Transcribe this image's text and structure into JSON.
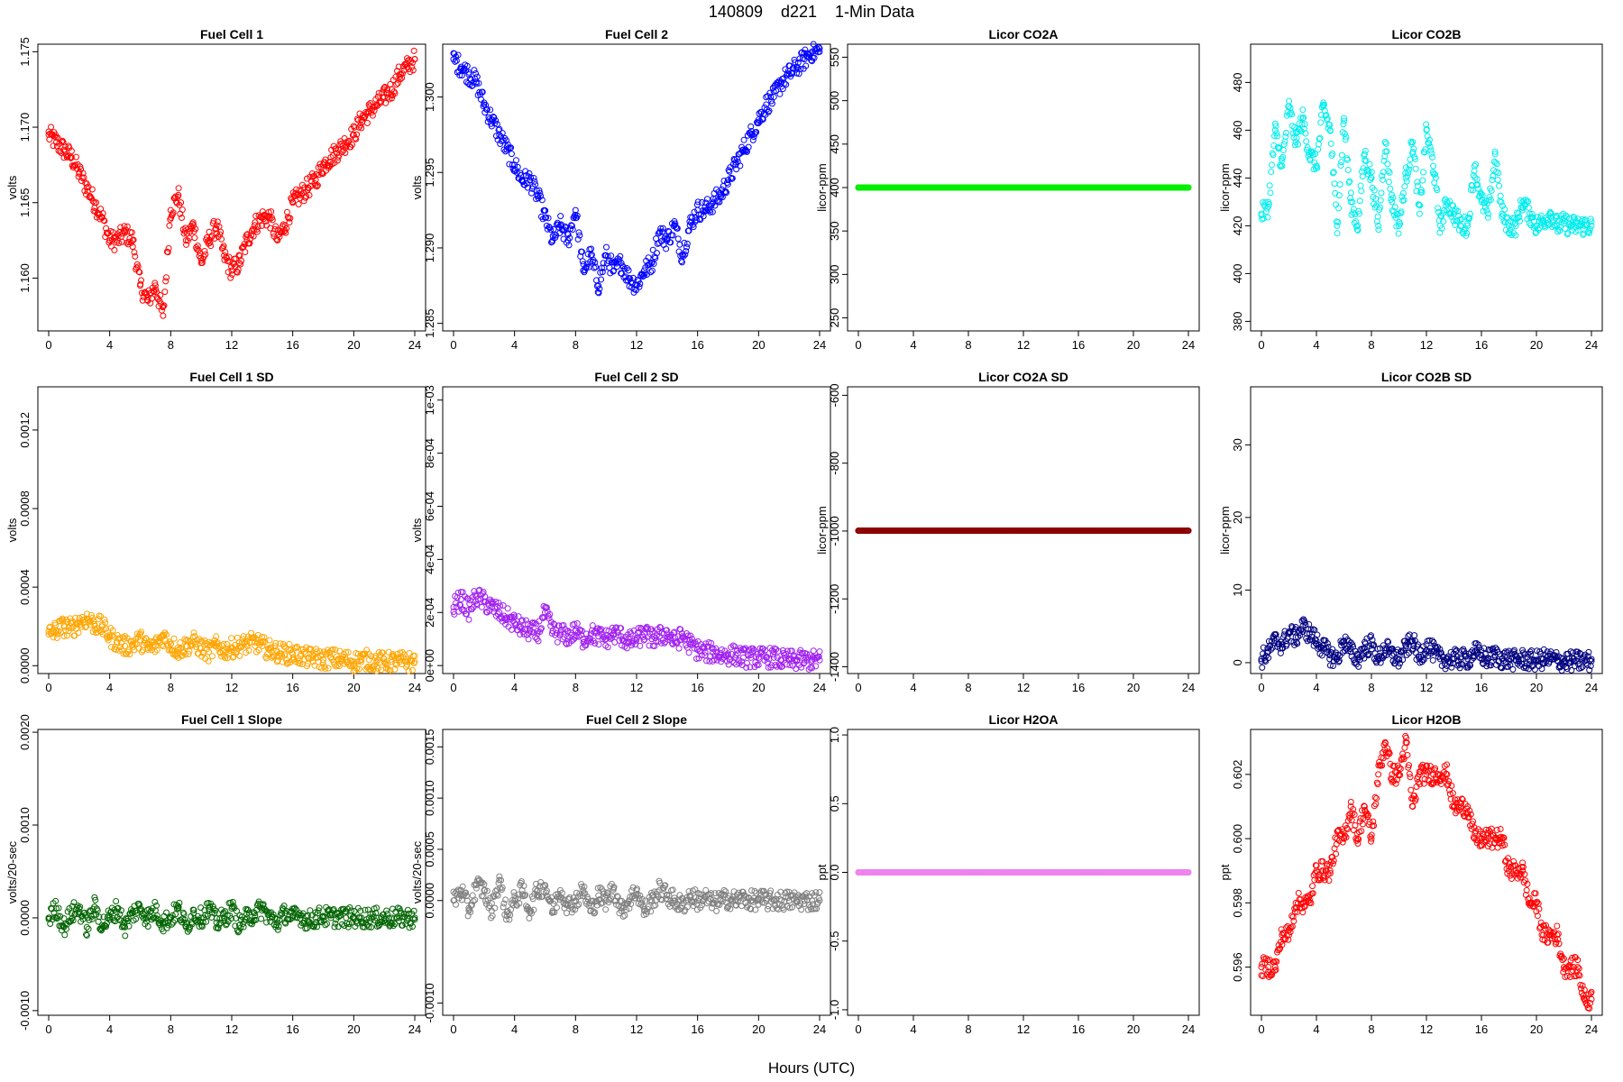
{
  "figure": {
    "title": "140809    d221    1-Min Data",
    "xlabel": "Hours (UTC)"
  },
  "chart_data": [
    {
      "type": "scatter",
      "title": "Fuel Cell 1",
      "ylabel": "volts",
      "color": "#ff0000",
      "xlim": [
        0,
        24
      ],
      "ylim": [
        1.1565,
        1.1755
      ],
      "xticks": [
        0,
        4,
        8,
        12,
        16,
        20,
        24
      ],
      "yticks": [
        1.16,
        1.165,
        1.17,
        1.175
      ],
      "ytick_labels": [
        "1.160",
        "1.165",
        "1.170",
        "1.175"
      ],
      "x": [
        0,
        0.5,
        1,
        1.5,
        2,
        2.5,
        3,
        3.5,
        4,
        4.5,
        5,
        5.5,
        6,
        6.5,
        7,
        7.5,
        8,
        8.5,
        9,
        9.5,
        10,
        10.5,
        11,
        11.5,
        12,
        12.5,
        13,
        13.5,
        14,
        14.5,
        15,
        15.5,
        16,
        16.5,
        17,
        17.5,
        18,
        18.5,
        19,
        19.5,
        20,
        20.5,
        21,
        21.5,
        22,
        22.5,
        23,
        23.5,
        24
      ],
      "y": [
        1.1695,
        1.169,
        1.1685,
        1.168,
        1.167,
        1.166,
        1.165,
        1.164,
        1.1625,
        1.1625,
        1.163,
        1.1625,
        1.1595,
        1.1585,
        1.1595,
        1.1575,
        1.1645,
        1.1655,
        1.1625,
        1.1635,
        1.161,
        1.1625,
        1.1635,
        1.1615,
        1.1605,
        1.161,
        1.1625,
        1.1635,
        1.164,
        1.164,
        1.1625,
        1.1635,
        1.165,
        1.1655,
        1.166,
        1.1665,
        1.1675,
        1.168,
        1.1685,
        1.169,
        1.1695,
        1.1705,
        1.171,
        1.1715,
        1.172,
        1.1725,
        1.1735,
        1.174,
        1.1745
      ]
    },
    {
      "type": "scatter",
      "title": "Fuel Cell 2",
      "ylabel": "volts",
      "color": "#0000ff",
      "xlim": [
        0,
        24
      ],
      "ylim": [
        1.2845,
        1.3035
      ],
      "xticks": [
        0,
        4,
        8,
        12,
        16,
        20,
        24
      ],
      "yticks": [
        1.285,
        1.29,
        1.295,
        1.3
      ],
      "ytick_labels": [
        "1.285",
        "1.290",
        "1.295",
        "1.300"
      ],
      "x": [
        0,
        0.5,
        1,
        1.5,
        2,
        2.5,
        3,
        3.5,
        4,
        4.5,
        5,
        5.5,
        6,
        6.5,
        7,
        7.5,
        8,
        8.5,
        9,
        9.5,
        10,
        10.5,
        11,
        11.5,
        12,
        12.5,
        13,
        13.5,
        14,
        14.5,
        15,
        15.5,
        16,
        16.5,
        17,
        17.5,
        18,
        18.5,
        19,
        19.5,
        20,
        20.5,
        21,
        21.5,
        22,
        22.5,
        23,
        23.5,
        24
      ],
      "y": [
        1.3025,
        1.302,
        1.3015,
        1.301,
        1.2995,
        1.2985,
        1.2975,
        1.2965,
        1.2955,
        1.2945,
        1.2945,
        1.2935,
        1.292,
        1.2905,
        1.2915,
        1.2905,
        1.2925,
        1.2885,
        1.2895,
        1.2875,
        1.2895,
        1.2885,
        1.289,
        1.288,
        1.2875,
        1.2885,
        1.289,
        1.291,
        1.2905,
        1.2915,
        1.2895,
        1.2915,
        1.2925,
        1.2925,
        1.293,
        1.2935,
        1.2945,
        1.2955,
        1.2965,
        1.2975,
        1.2985,
        1.2995,
        1.3,
        1.301,
        1.3015,
        1.302,
        1.3025,
        1.303,
        1.303
      ]
    },
    {
      "type": "scatter",
      "title": "Licor CO2A",
      "ylabel": "licor-ppm",
      "color": "#00ee00",
      "xlim": [
        0,
        24
      ],
      "ylim": [
        235,
        565
      ],
      "xticks": [
        0,
        4,
        8,
        12,
        16,
        20,
        24
      ],
      "yticks": [
        250,
        300,
        350,
        400,
        450,
        500,
        550
      ],
      "ytick_labels": [
        "250",
        "300",
        "350",
        "400",
        "450",
        "500",
        "550"
      ],
      "x": [
        0,
        24
      ],
      "y": [
        400,
        400
      ]
    },
    {
      "type": "scatter",
      "title": "Licor CO2B",
      "ylabel": "licor-ppm",
      "color": "#00eeee",
      "xlim": [
        0,
        24
      ],
      "ylim": [
        376,
        496
      ],
      "xticks": [
        0,
        4,
        8,
        12,
        16,
        20,
        24
      ],
      "yticks": [
        380,
        400,
        420,
        440,
        460,
        480
      ],
      "ytick_labels": [
        "380",
        "400",
        "420",
        "440",
        "460",
        "480"
      ],
      "x": [
        0,
        0.5,
        1,
        1.5,
        2,
        2.5,
        3,
        3.5,
        4,
        4.5,
        5,
        5.5,
        6,
        6.5,
        7,
        7.5,
        8,
        8.5,
        9,
        9.5,
        10,
        10.5,
        11,
        11.5,
        12,
        12.5,
        13,
        13.5,
        14,
        14.5,
        15,
        15.5,
        16,
        16.5,
        17,
        17.5,
        18,
        18.5,
        19,
        19.5,
        20,
        20.5,
        21,
        21.5,
        22,
        22.5,
        23,
        23.5,
        24
      ],
      "y": [
        425,
        428,
        460,
        445,
        470,
        455,
        465,
        450,
        445,
        470,
        460,
        420,
        465,
        430,
        420,
        450,
        440,
        420,
        455,
        430,
        420,
        440,
        455,
        425,
        460,
        445,
        420,
        430,
        425,
        420,
        420,
        445,
        430,
        425,
        450,
        425,
        420,
        420,
        430,
        425,
        420,
        422,
        425,
        420,
        421,
        420,
        420,
        420,
        420
      ]
    },
    {
      "type": "scatter",
      "title": "Fuel Cell 1 SD",
      "ylabel": "volts",
      "color": "#ffa500",
      "xlim": [
        0,
        24
      ],
      "ylim": [
        -4e-05,
        0.00142
      ],
      "xticks": [
        0,
        4,
        8,
        12,
        16,
        20,
        24
      ],
      "yticks": [
        0,
        0.0004,
        0.0008,
        0.0012
      ],
      "ytick_labels": [
        "0.0000",
        "0.0004",
        "0.0008",
        "0.0012"
      ],
      "x": [
        0,
        0.5,
        1,
        1.5,
        2,
        2.5,
        3,
        3.5,
        4,
        4.5,
        5,
        5.5,
        6,
        6.5,
        7,
        7.5,
        8,
        8.5,
        9,
        9.5,
        10,
        10.5,
        11,
        11.5,
        12,
        12.5,
        13,
        13.5,
        14,
        14.5,
        15,
        15.5,
        16,
        16.5,
        17,
        17.5,
        18,
        18.5,
        19,
        19.5,
        20,
        20.5,
        21,
        21.5,
        22,
        22.5,
        23,
        23.5,
        24
      ],
      "y": [
        0.00016,
        0.00018,
        0.0002,
        0.00019,
        0.00022,
        0.00024,
        0.00021,
        0.0002,
        0.00015,
        0.00012,
        0.0001,
        0.00011,
        0.00013,
        9e-05,
        0.0001,
        0.00015,
        0.00011,
        8e-05,
        0.0001,
        0.00012,
        9e-05,
        7e-05,
        0.0001,
        8e-05,
        9e-05,
        0.0001,
        0.00011,
        0.00012,
        0.0001,
        8e-05,
        7e-05,
        6e-05,
        6e-05,
        5e-05,
        4e-05,
        4e-05,
        3e-05,
        4e-05,
        3e-05,
        3e-05,
        2e-05,
        3e-05,
        3e-05,
        2e-05,
        2e-05,
        2e-05,
        2e-05,
        2e-05,
        2e-05
      ]
    },
    {
      "type": "scatter",
      "title": "Fuel Cell 2 SD",
      "ylabel": "volts",
      "color": "#a020f0",
      "xlim": [
        0,
        24
      ],
      "ylim": [
        -3e-05,
        0.00105
      ],
      "xticks": [
        0,
        4,
        8,
        12,
        16,
        20,
        24
      ],
      "yticks": [
        0,
        0.0002,
        0.0004,
        0.0006,
        0.0008,
        0.001
      ],
      "ytick_labels": [
        "0e+00",
        "2e-04",
        "4e-04",
        "6e-04",
        "8e-04",
        "1e-03"
      ],
      "x": [
        0,
        0.5,
        1,
        1.5,
        2,
        2.5,
        3,
        3.5,
        4,
        4.5,
        5,
        5.5,
        6,
        6.5,
        7,
        7.5,
        8,
        8.5,
        9,
        9.5,
        10,
        10.5,
        11,
        11.5,
        12,
        12.5,
        13,
        13.5,
        14,
        14.5,
        15,
        15.5,
        16,
        16.5,
        17,
        17.5,
        18,
        18.5,
        19,
        19.5,
        20,
        20.5,
        21,
        21.5,
        22,
        22.5,
        23,
        23.5,
        24
      ],
      "y": [
        0.00022,
        0.00025,
        0.00021,
        0.00026,
        0.00024,
        0.00022,
        0.0002,
        0.00018,
        0.00016,
        0.00014,
        0.00013,
        0.00012,
        0.0002,
        0.00013,
        0.00012,
        0.00011,
        0.00013,
        0.0001,
        0.00012,
        0.00011,
        0.0001,
        0.00012,
        0.00011,
        9e-05,
        0.0001,
        0.00012,
        0.0001,
        0.00011,
        0.00012,
        9e-05,
        0.00011,
        8e-05,
        6e-05,
        5e-05,
        5e-05,
        4e-05,
        4e-05,
        4e-05,
        3e-05,
        3e-05,
        3e-05,
        3e-05,
        3e-05,
        2e-05,
        2e-05,
        2e-05,
        2e-05,
        2e-05,
        2e-05
      ]
    },
    {
      "type": "scatter",
      "title": "Licor CO2A SD",
      "ylabel": "licor-ppm",
      "color": "#8b0000",
      "xlim": [
        0,
        24
      ],
      "ylim": [
        -1420,
        -575
      ],
      "xticks": [
        0,
        4,
        8,
        12,
        16,
        20,
        24
      ],
      "yticks": [
        -1400,
        -1200,
        -1000,
        -800,
        -600
      ],
      "ytick_labels": [
        "-1400",
        "-1200",
        "-1000",
        "-800",
        "-600"
      ],
      "x": [
        0,
        24
      ],
      "y": [
        -999,
        -999
      ]
    },
    {
      "type": "scatter",
      "title": "Licor CO2B SD",
      "ylabel": "licor-ppm",
      "color": "#000080",
      "xlim": [
        0,
        24
      ],
      "ylim": [
        -1.5,
        38
      ],
      "xticks": [
        0,
        4,
        8,
        12,
        16,
        20,
        24
      ],
      "yticks": [
        0,
        10,
        20,
        30
      ],
      "ytick_labels": [
        "0",
        "10",
        "20",
        "30"
      ],
      "x": [
        0,
        0.5,
        1,
        1.5,
        2,
        2.5,
        3,
        3.5,
        4,
        4.5,
        5,
        5.5,
        6,
        6.5,
        7,
        7.5,
        8,
        8.5,
        9,
        9.5,
        10,
        10.5,
        11,
        11.5,
        12,
        12.5,
        13,
        13.5,
        14,
        14.5,
        15,
        15.5,
        16,
        16.5,
        17,
        17.5,
        18,
        18.5,
        19,
        19.5,
        20,
        20.5,
        21,
        21.5,
        22,
        22.5,
        23,
        23.5,
        24
      ],
      "y": [
        0.5,
        1.5,
        3,
        2.5,
        4,
        3.5,
        5,
        4,
        3,
        2,
        1,
        0.5,
        3,
        1.5,
        0.5,
        2,
        2.5,
        0.5,
        2,
        1,
        0.5,
        2,
        3,
        0.5,
        2.5,
        1.5,
        0.5,
        0.5,
        0.5,
        0.5,
        0.5,
        1.5,
        1,
        0.5,
        1,
        0.5,
        0.5,
        0.3,
        0.5,
        0.3,
        0.3,
        0.5,
        0.5,
        0.3,
        0.2,
        0.2,
        0.2,
        0.2,
        0.2
      ]
    },
    {
      "type": "scatter",
      "title": "Fuel Cell 1 Slope",
      "ylabel": "volts/20-sec",
      "color": "#006400",
      "xlim": [
        0,
        24
      ],
      "ylim": [
        -0.00105,
        0.00203
      ],
      "xticks": [
        0,
        4,
        8,
        12,
        16,
        20,
        24
      ],
      "yticks": [
        -0.001,
        0,
        0.001,
        0.002
      ],
      "ytick_labels": [
        "-0.0010",
        "0.0000",
        "0.0010",
        "0.0020"
      ],
      "x": [
        0,
        0.5,
        1,
        1.5,
        2,
        2.5,
        3,
        3.5,
        4,
        4.5,
        5,
        5.5,
        6,
        6.5,
        7,
        7.5,
        8,
        8.5,
        9,
        9.5,
        10,
        10.5,
        11,
        11.5,
        12,
        12.5,
        13,
        13.5,
        14,
        14.5,
        15,
        15.5,
        16,
        16.5,
        17,
        17.5,
        18,
        18.5,
        19,
        19.5,
        20,
        20.5,
        21,
        21.5,
        22,
        22.5,
        23,
        23.5,
        24
      ],
      "y": [
        0,
        0.0001,
        -0.0001,
        5e-05,
        0.0001,
        -0.0001,
        0.00012,
        -8e-05,
        0,
        0.0001,
        -0.0001,
        5e-05,
        0.0001,
        0,
        8e-05,
        -5e-05,
        0,
        0.0001,
        -0.0001,
        5e-05,
        0,
        0.0001,
        -5e-05,
        0,
        0.0001,
        -8e-05,
        0,
        5e-05,
        0.0001,
        0,
        -5e-05,
        5e-05,
        0,
        3e-05,
        -3e-05,
        0,
        2e-05,
        0,
        1e-05,
        0,
        1e-05,
        0,
        0,
        0,
        0,
        0,
        0,
        0,
        0
      ]
    },
    {
      "type": "scatter",
      "title": "Fuel Cell 2 Slope",
      "ylabel": "volts/20-sec",
      "color": "#808080",
      "xlim": [
        0,
        24
      ],
      "ylim": [
        -0.00112,
        0.00167
      ],
      "xticks": [
        0,
        4,
        8,
        12,
        16,
        20,
        24
      ],
      "yticks": [
        -0.001,
        0,
        0.0005,
        0.001,
        0.0015
      ],
      "ytick_labels": [
        "-0.0010",
        "0.0000",
        "0.0005",
        "0.0010",
        "0.0015"
      ],
      "x": [
        0,
        0.5,
        1,
        1.5,
        2,
        2.5,
        3,
        3.5,
        4,
        4.5,
        5,
        5.5,
        6,
        6.5,
        7,
        7.5,
        8,
        8.5,
        9,
        9.5,
        10,
        10.5,
        11,
        11.5,
        12,
        12.5,
        13,
        13.5,
        14,
        14.5,
        15,
        15.5,
        16,
        16.5,
        17,
        17.5,
        18,
        18.5,
        19,
        19.5,
        20,
        20.5,
        21,
        21.5,
        22,
        22.5,
        23,
        23.5,
        24
      ],
      "y": [
        0,
        0.0001,
        -0.0001,
        0.00015,
        0.0001,
        -0.0001,
        0.0002,
        -0.00015,
        0,
        0.0001,
        -0.0001,
        0.0001,
        0.00015,
        -0.0001,
        0.0001,
        -5e-05,
        0,
        0.0001,
        -0.0001,
        5e-05,
        0,
        0.00012,
        -0.0001,
        0,
        0.0001,
        -0.0001,
        0,
        0.0001,
        5e-05,
        0,
        -5e-05,
        5e-05,
        0,
        3e-05,
        -3e-05,
        0,
        2e-05,
        0,
        2e-05,
        0,
        1e-05,
        0,
        0,
        0,
        0,
        0,
        0,
        0,
        0
      ]
    },
    {
      "type": "scatter",
      "title": "Licor H2OA",
      "ylabel": "ppt",
      "color": "#ee82ee",
      "xlim": [
        0,
        24
      ],
      "ylim": [
        -1.04,
        1.04
      ],
      "xticks": [
        0,
        4,
        8,
        12,
        16,
        20,
        24
      ],
      "yticks": [
        -1,
        -0.5,
        0,
        0.5,
        1
      ],
      "ytick_labels": [
        "-1.0",
        "-0.5",
        "0.0",
        "0.5",
        "1.0"
      ],
      "x": [
        0,
        24
      ],
      "y": [
        0,
        0
      ]
    },
    {
      "type": "scatter",
      "title": "Licor H2OB",
      "ylabel": "ppt",
      "color": "#ff0000",
      "xlim": [
        0,
        24
      ],
      "ylim": [
        0.5945,
        0.6034
      ],
      "xticks": [
        0,
        4,
        8,
        12,
        16,
        20,
        24
      ],
      "yticks": [
        0.596,
        0.598,
        0.6,
        0.602
      ],
      "ytick_labels": [
        "0.596",
        "0.598",
        "0.600",
        "0.602"
      ],
      "x": [
        0,
        0.5,
        1,
        1.5,
        2,
        2.5,
        3,
        3.5,
        4,
        4.5,
        5,
        5.5,
        6,
        6.5,
        7,
        7.5,
        8,
        8.5,
        9,
        9.5,
        10,
        10.5,
        11,
        11.5,
        12,
        12.5,
        13,
        13.5,
        14,
        14.5,
        15,
        15.5,
        16,
        16.5,
        17,
        17.5,
        18,
        18.5,
        19,
        19.5,
        20,
        20.5,
        21,
        21.5,
        22,
        22.5,
        23,
        23.5,
        24
      ],
      "y": [
        0.596,
        0.596,
        0.596,
        0.597,
        0.597,
        0.598,
        0.598,
        0.598,
        0.599,
        0.599,
        0.599,
        0.6,
        0.6,
        0.601,
        0.6,
        0.601,
        0.6,
        0.602,
        0.603,
        0.602,
        0.602,
        0.603,
        0.601,
        0.602,
        0.602,
        0.602,
        0.602,
        0.602,
        0.601,
        0.601,
        0.601,
        0.6,
        0.6,
        0.6,
        0.6,
        0.6,
        0.599,
        0.599,
        0.599,
        0.598,
        0.598,
        0.597,
        0.597,
        0.597,
        0.596,
        0.596,
        0.596,
        0.595,
        0.595
      ]
    }
  ]
}
